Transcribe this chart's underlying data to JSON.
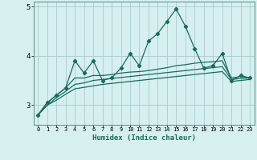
{
  "title": "",
  "xlabel": "Humidex (Indice chaleur)",
  "background_color": "#d6f0ef",
  "grid_color": "#aaccca",
  "line_color": "#1a6b5a",
  "x_values": [
    0,
    1,
    2,
    3,
    4,
    5,
    6,
    7,
    8,
    9,
    10,
    11,
    12,
    13,
    14,
    15,
    16,
    17,
    18,
    19,
    20,
    21,
    22,
    23
  ],
  "series1": [
    2.8,
    3.05,
    3.2,
    3.35,
    3.9,
    3.65,
    3.9,
    3.5,
    3.55,
    3.75,
    4.05,
    3.8,
    4.3,
    4.45,
    4.7,
    4.95,
    4.6,
    4.15,
    3.75,
    3.8,
    4.05,
    3.5,
    3.6,
    3.55
  ],
  "series2": [
    2.8,
    3.05,
    3.2,
    3.35,
    3.55,
    3.55,
    3.6,
    3.6,
    3.62,
    3.65,
    3.67,
    3.68,
    3.7,
    3.73,
    3.76,
    3.8,
    3.82,
    3.85,
    3.87,
    3.88,
    3.9,
    3.55,
    3.58,
    3.55
  ],
  "series3": [
    2.8,
    3.0,
    3.15,
    3.28,
    3.42,
    3.45,
    3.5,
    3.52,
    3.54,
    3.56,
    3.58,
    3.6,
    3.62,
    3.64,
    3.66,
    3.68,
    3.7,
    3.72,
    3.74,
    3.76,
    3.78,
    3.52,
    3.54,
    3.55
  ],
  "series4": [
    2.8,
    3.0,
    3.1,
    3.22,
    3.33,
    3.36,
    3.39,
    3.42,
    3.44,
    3.46,
    3.48,
    3.5,
    3.52,
    3.54,
    3.56,
    3.58,
    3.6,
    3.62,
    3.64,
    3.66,
    3.68,
    3.48,
    3.5,
    3.52
  ],
  "ylim": [
    2.6,
    5.1
  ],
  "yticks": [
    3,
    4,
    5
  ],
  "xticks": [
    0,
    1,
    2,
    3,
    4,
    5,
    6,
    7,
    8,
    9,
    10,
    11,
    12,
    13,
    14,
    15,
    16,
    17,
    18,
    19,
    20,
    21,
    22,
    23
  ],
  "marker": "D",
  "markersize": 2.2,
  "linewidth": 0.9
}
